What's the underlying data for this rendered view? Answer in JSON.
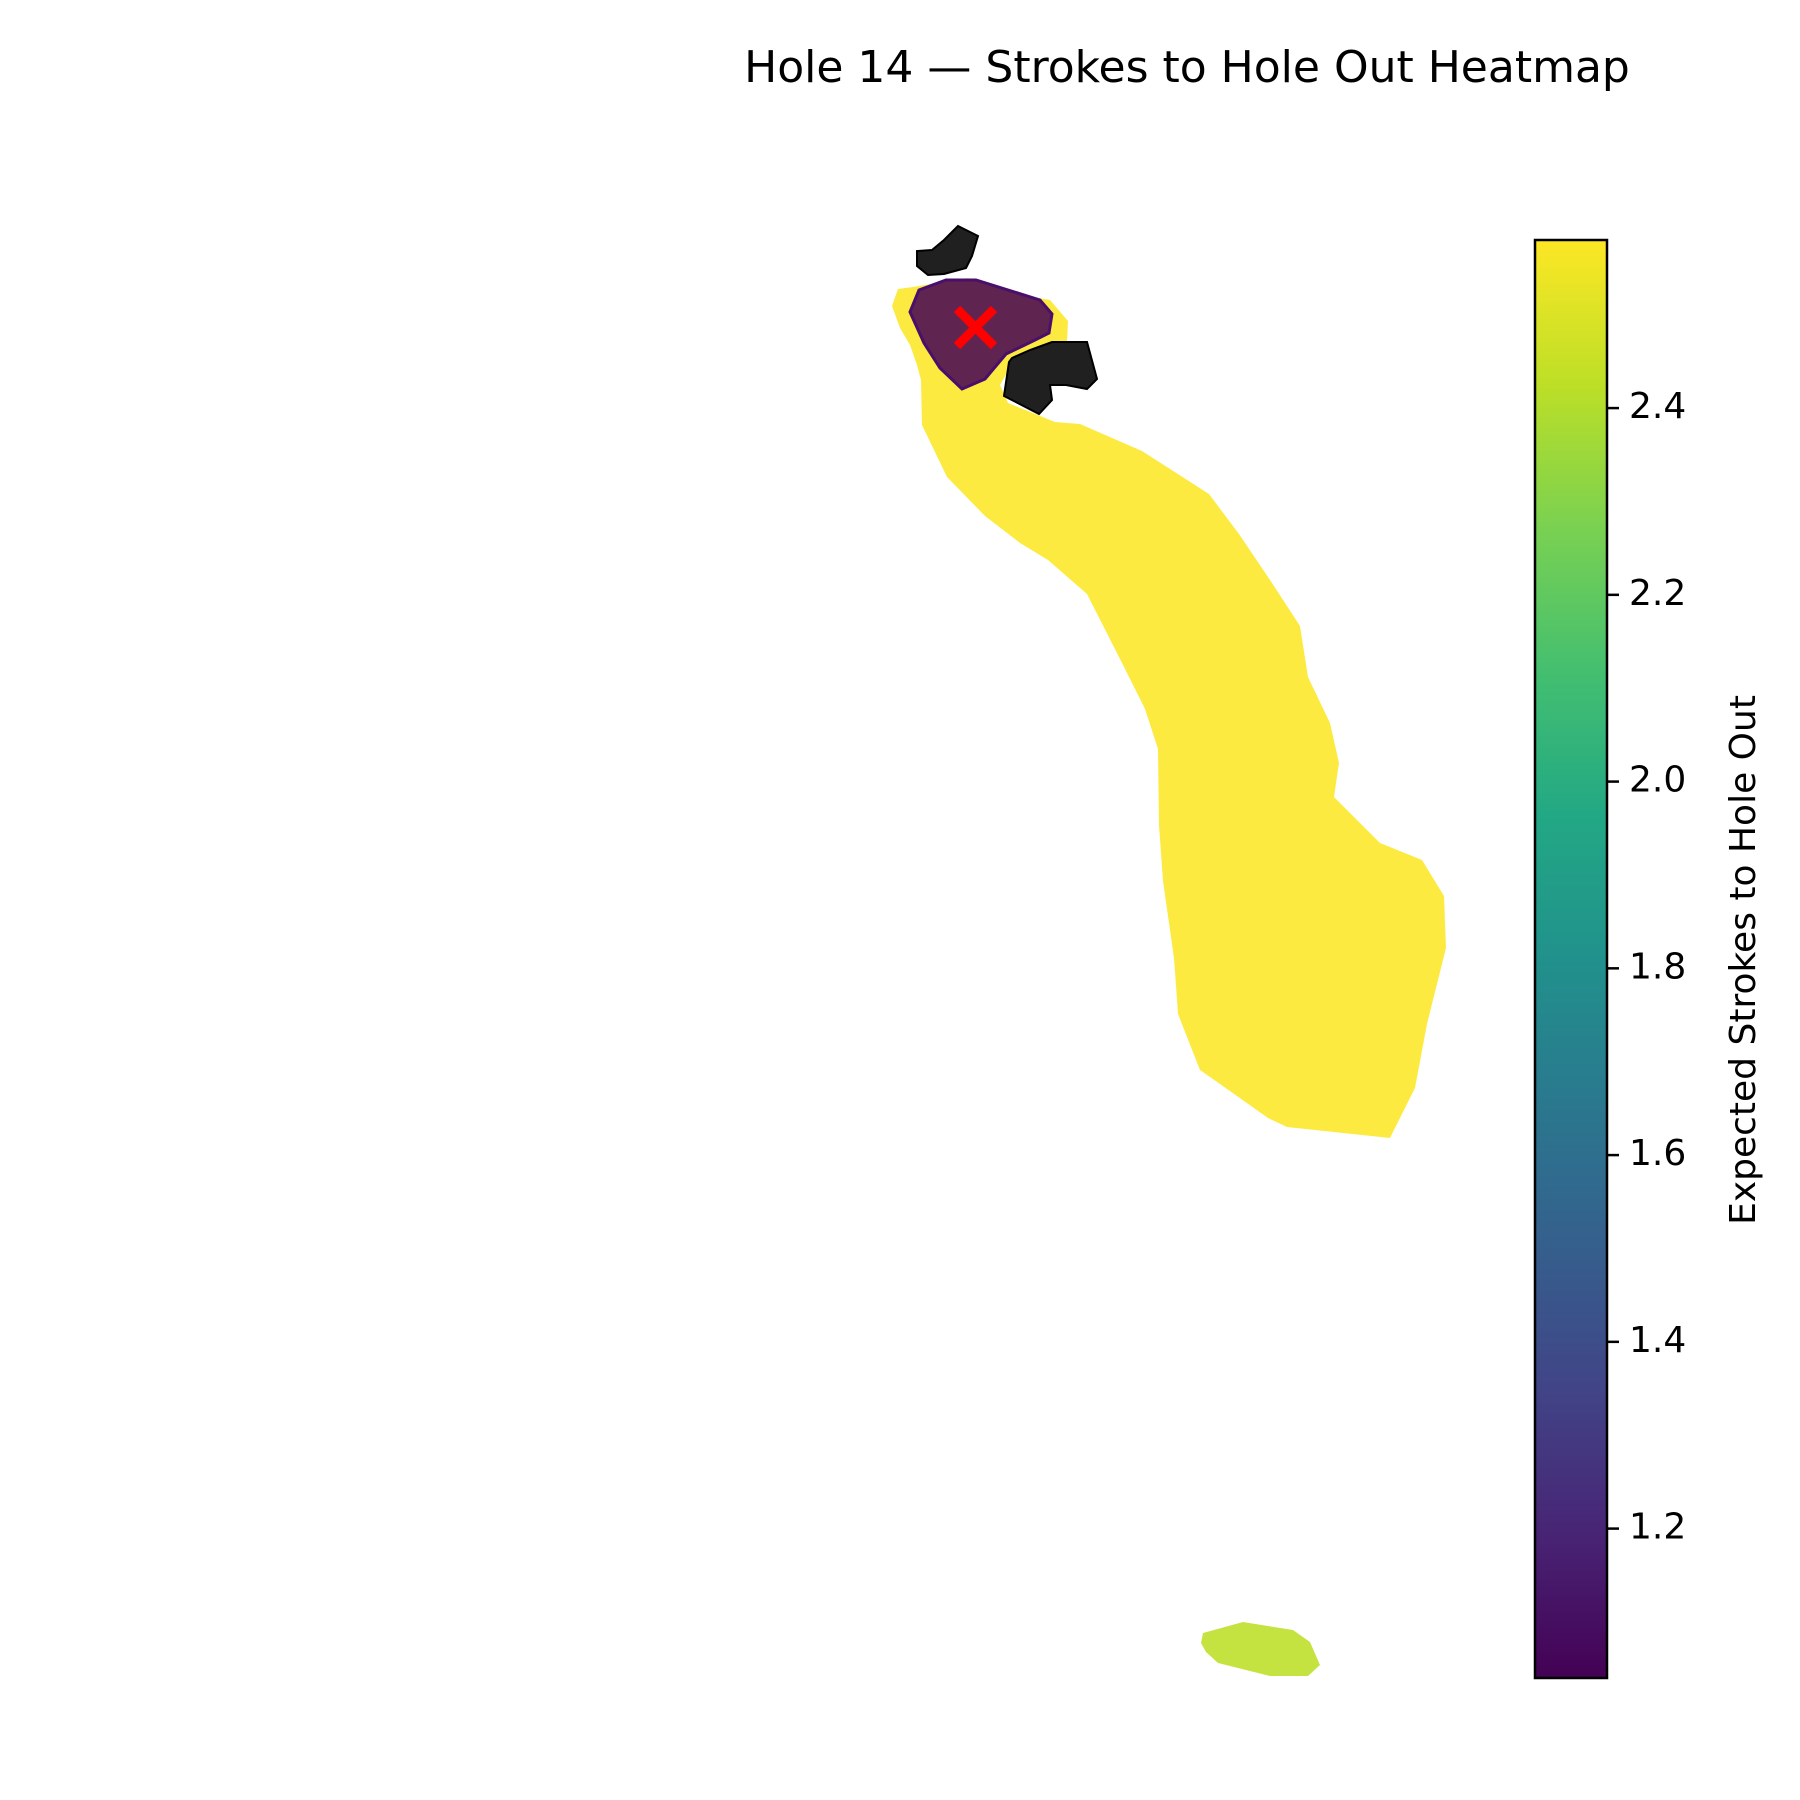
{
  "chart_data": {
    "type": "heatmap",
    "title": "Hole 14 — Strokes to Hole Out Heatmap",
    "colormap": "viridis",
    "colorbar": {
      "label": "Expected Strokes to Hole Out",
      "range": [
        1.04,
        2.58
      ],
      "ticks": [
        1.2,
        1.4,
        1.6,
        1.8,
        2.0,
        2.2,
        2.4
      ],
      "tick_labels": [
        "1.2",
        "1.4",
        "1.6",
        "1.8",
        "2.0",
        "2.2",
        "2.4"
      ]
    },
    "regions": [
      {
        "name": "fairway",
        "value": 2.55
      },
      {
        "name": "green",
        "value": 1.04
      },
      {
        "name": "tee",
        "value": 2.4
      }
    ],
    "hazards": [
      {
        "name": "bunker",
        "color": "#202020"
      },
      {
        "name": "bunker",
        "color": "#202020"
      }
    ],
    "pin": {
      "marker": "x",
      "color": "#ff0000"
    },
    "grid": false,
    "axes_visible": false,
    "legend": "none"
  }
}
